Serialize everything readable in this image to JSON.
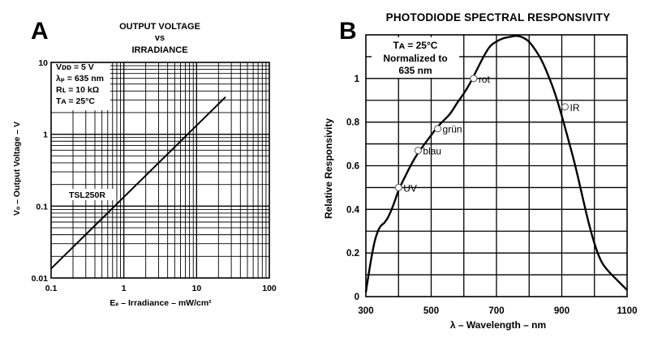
{
  "chart_data": [
    {
      "type": "line",
      "panel_label": "A",
      "title_lines": [
        "OUTPUT VOLTAGE",
        "vs",
        "IRRADIANCE"
      ],
      "xlabel": "Eₑ – Irradiance – mW/cm²",
      "ylabel": "Vₒ – Output Voltage – V",
      "xscale": "log",
      "yscale": "log",
      "xlim": [
        0.1,
        100
      ],
      "ylim": [
        0.01,
        10
      ],
      "x_ticks": [
        {
          "value": 0.1,
          "label": "0.1"
        },
        {
          "value": 1,
          "label": "1"
        },
        {
          "value": 10,
          "label": "10"
        },
        {
          "value": 100,
          "label": "100"
        }
      ],
      "y_ticks": [
        {
          "value": 0.01,
          "label": "0.01"
        },
        {
          "value": 0.1,
          "label": "0.1"
        },
        {
          "value": 1,
          "label": "1"
        },
        {
          "value": 10,
          "label": "10"
        }
      ],
      "grid": true,
      "conditions": [
        "Vᴅᴅ = 5 V",
        "λₚ = 635 nm",
        "Rʟ = 10 kΩ",
        "Tᴀ = 25°C"
      ],
      "series": [
        {
          "name": "TSL250R",
          "x": [
            0.1,
            25
          ],
          "y": [
            0.0135,
            3.3
          ]
        }
      ]
    },
    {
      "type": "line",
      "panel_label": "B",
      "title": "PHOTODIODE SPECTRAL RESPONSIVITY",
      "xlabel": "λ – Wavelength – nm",
      "ylabel": "Relative Responsivity",
      "xlim": [
        300,
        1100
      ],
      "ylim": [
        0,
        1.2
      ],
      "x_ticks": [
        300,
        500,
        700,
        900,
        1100
      ],
      "y_ticks": [
        0,
        0.2,
        0.4,
        0.6,
        0.8,
        1
      ],
      "grid": true,
      "conditions": [
        "Tᴀ = 25°C",
        "Normalized to",
        "635 nm"
      ],
      "series": [
        {
          "name": "",
          "x": [
            300,
            320,
            340,
            360,
            380,
            400,
            420,
            440,
            460,
            480,
            500,
            520,
            540,
            560,
            580,
            600,
            620,
            640,
            660,
            680,
            700,
            720,
            740,
            760,
            780,
            800,
            820,
            840,
            860,
            880,
            900,
            920,
            940,
            960,
            980,
            1000,
            1020,
            1040,
            1060,
            1080,
            1100
          ],
          "y": [
            0.02,
            0.22,
            0.32,
            0.34,
            0.4,
            0.49,
            0.55,
            0.61,
            0.66,
            0.7,
            0.74,
            0.78,
            0.81,
            0.84,
            0.89,
            0.93,
            0.98,
            1.04,
            1.1,
            1.15,
            1.17,
            1.185,
            1.19,
            1.197,
            1.19,
            1.17,
            1.13,
            1.08,
            1.01,
            0.93,
            0.83,
            0.72,
            0.61,
            0.48,
            0.35,
            0.24,
            0.16,
            0.12,
            0.09,
            0.06,
            0.03
          ]
        }
      ],
      "annotations": [
        {
          "text": "UV",
          "x": 400,
          "y": 0.5
        },
        {
          "text": "blau",
          "x": 460,
          "y": 0.67
        },
        {
          "text": "grün",
          "x": 520,
          "y": 0.77
        },
        {
          "text": "rot",
          "x": 630,
          "y": 1.0
        },
        {
          "text": "IR",
          "x": 910,
          "y": 0.87
        }
      ]
    }
  ]
}
